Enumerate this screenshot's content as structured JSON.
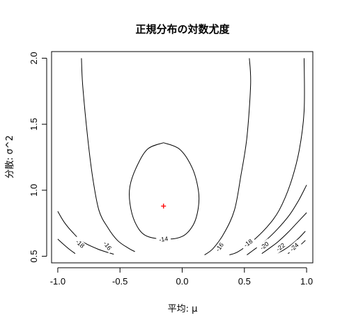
{
  "chart_data": {
    "type": "contour",
    "title": "正規分布の対数尤度",
    "xlabel": "平均: μ",
    "ylabel": "分散: σ^2",
    "xlim": [
      -1.05,
      1.05
    ],
    "ylim": [
      0.45,
      2.05
    ],
    "xticks": [
      -1.0,
      -0.5,
      0.0,
      0.5,
      1.0
    ],
    "xtick_labels": [
      "-1.0",
      "-0.5",
      "0.0",
      "0.5",
      "1.0"
    ],
    "yticks": [
      0.5,
      1.0,
      1.5,
      2.0
    ],
    "ytick_labels": [
      "0.5",
      "1.0",
      "1.5",
      "2.0"
    ],
    "grid": false,
    "contours": [
      {
        "level": "-14",
        "label_at": [
          -0.15,
          0.63
        ],
        "points": [
          [
            -0.15,
            1.36
          ],
          [
            -0.02,
            1.31
          ],
          [
            0.08,
            1.17
          ],
          [
            0.13,
            1.0
          ],
          [
            0.13,
            0.87
          ],
          [
            0.09,
            0.74
          ],
          [
            0.0,
            0.65
          ],
          [
            -0.15,
            0.63
          ],
          [
            -0.3,
            0.66
          ],
          [
            -0.38,
            0.76
          ],
          [
            -0.42,
            0.9
          ],
          [
            -0.42,
            1.03
          ],
          [
            -0.37,
            1.17
          ],
          [
            -0.28,
            1.31
          ],
          [
            -0.15,
            1.36
          ]
        ]
      },
      {
        "level": "-16",
        "label_at": [
          -0.6,
          0.58
        ],
        "points": [
          [
            -0.81,
            2.0
          ],
          [
            -0.8,
            1.8
          ],
          [
            -0.76,
            1.4
          ],
          [
            -0.72,
            1.1
          ],
          [
            -0.67,
            0.85
          ],
          [
            -0.6,
            0.72
          ],
          [
            -0.52,
            0.62
          ],
          [
            -0.43,
            0.56
          ],
          [
            -0.38,
            0.535
          ]
        ]
      },
      {
        "level": "-16",
        "label_at": [
          0.3,
          0.57
        ],
        "points": [
          [
            0.54,
            2.0
          ],
          [
            0.55,
            1.8
          ],
          [
            0.52,
            1.4
          ],
          [
            0.47,
            1.1
          ],
          [
            0.42,
            0.85
          ],
          [
            0.34,
            0.68
          ],
          [
            0.25,
            0.56
          ],
          [
            0.18,
            0.51
          ]
        ]
      },
      {
        "level": "-18",
        "label_at": [
          -0.82,
          0.595
        ],
        "points": [
          [
            -1.0,
            0.84
          ],
          [
            -0.95,
            0.76
          ],
          [
            -0.88,
            0.68
          ],
          [
            -0.8,
            0.61
          ],
          [
            -0.68,
            0.555
          ],
          [
            -0.55,
            0.515
          ]
        ]
      },
      {
        "level": "-18",
        "label_at": [
          0.53,
          0.6
        ],
        "points": [
          [
            0.98,
            2.0
          ],
          [
            0.98,
            1.6
          ],
          [
            0.94,
            1.3
          ],
          [
            0.87,
            1.05
          ],
          [
            0.78,
            0.85
          ],
          [
            0.68,
            0.72
          ],
          [
            0.56,
            0.61
          ],
          [
            0.45,
            0.535
          ],
          [
            0.38,
            0.51
          ]
        ]
      },
      {
        "level": "-20",
        "label_at": [
          0.66,
          0.58
        ],
        "points": [
          [
            1.0,
            1.04
          ],
          [
            0.94,
            0.93
          ],
          [
            0.86,
            0.81
          ],
          [
            0.76,
            0.7
          ],
          [
            0.66,
            0.61
          ],
          [
            0.57,
            0.545
          ],
          [
            0.52,
            0.51
          ]
        ]
      },
      {
        "level": "-22",
        "label_at": [
          0.79,
          0.57
        ],
        "points": [
          [
            1.0,
            0.83
          ],
          [
            0.93,
            0.76
          ],
          [
            0.85,
            0.68
          ],
          [
            0.77,
            0.61
          ],
          [
            0.7,
            0.56
          ],
          [
            0.64,
            0.52
          ]
        ]
      },
      {
        "level": "-24",
        "label_at": [
          0.9,
          0.57
        ],
        "points": [
          [
            0.99,
            0.69
          ],
          [
            0.94,
            0.64
          ],
          [
            0.88,
            0.59
          ],
          [
            0.82,
            0.55
          ],
          [
            0.76,
            0.52
          ]
        ]
      },
      {
        "level": "",
        "label_at": null,
        "points": [
          [
            -1.0,
            0.63
          ],
          [
            -0.96,
            0.595
          ],
          [
            -0.91,
            0.555
          ],
          [
            -0.86,
            0.52
          ]
        ]
      },
      {
        "level": "",
        "label_at": null,
        "points": [
          [
            0.99,
            0.62
          ],
          [
            0.95,
            0.585
          ],
          [
            0.9,
            0.55
          ],
          [
            0.85,
            0.52
          ]
        ]
      }
    ],
    "marker": {
      "x": -0.15,
      "y": 0.88,
      "symbol": "+",
      "color": "#ff0000"
    },
    "colors": {
      "contour": "#000000",
      "marker": "#ff0000",
      "frame": "#000000"
    }
  }
}
